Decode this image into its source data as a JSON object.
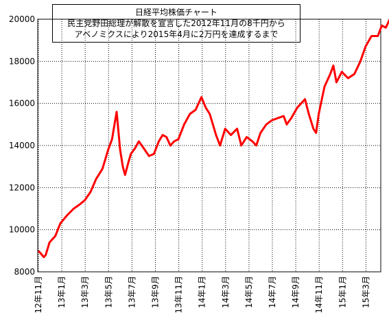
{
  "chart_data": {
    "type": "line",
    "title": [
      "日経平均株価チャート",
      "民主党野田総理が解散を宣言した2012年11月の8千円から",
      "アベノミクスにより2015年4月に2万円を達成するまで"
    ],
    "xlabel": "",
    "ylabel": "",
    "ylim": [
      8000,
      20000
    ],
    "yticks": [
      8000,
      10000,
      12000,
      14000,
      16000,
      18000,
      20000
    ],
    "x_ticks": [
      "12年11月",
      "13年1月",
      "13年3月",
      "13年5月",
      "13年7月",
      "13年9月",
      "13年11月",
      "14年1月",
      "14年3月",
      "14年5月",
      "14年7月",
      "14年9月",
      "14年11月",
      "15年1月",
      "15年3月"
    ],
    "grid": true,
    "legend": "none",
    "line_color": "#ff0000",
    "series": [
      {
        "name": "",
        "x": [
          "2012-11-01",
          "2012-11-15",
          "2012-11-20",
          "2012-11-30",
          "2012-12-15",
          "2012-12-28",
          "2013-01-15",
          "2013-01-31",
          "2013-02-15",
          "2013-02-28",
          "2013-03-15",
          "2013-03-29",
          "2013-04-05",
          "2013-04-15",
          "2013-04-30",
          "2013-05-10",
          "2013-05-22",
          "2013-05-31",
          "2013-06-07",
          "2013-06-13",
          "2013-06-20",
          "2013-06-28",
          "2013-07-10",
          "2013-07-19",
          "2013-07-31",
          "2013-08-15",
          "2013-08-28",
          "2013-09-10",
          "2013-09-20",
          "2013-09-30",
          "2013-10-10",
          "2013-10-20",
          "2013-10-31",
          "2013-11-15",
          "2013-11-30",
          "2013-12-15",
          "2013-12-30",
          "2014-01-10",
          "2014-01-20",
          "2014-02-05",
          "2014-02-15",
          "2014-02-28",
          "2014-03-15",
          "2014-03-31",
          "2014-04-11",
          "2014-04-25",
          "2014-05-10",
          "2014-05-20",
          "2014-05-31",
          "2014-06-15",
          "2014-06-30",
          "2014-07-15",
          "2014-07-31",
          "2014-08-08",
          "2014-08-20",
          "2014-09-05",
          "2014-09-15",
          "2014-09-25",
          "2014-10-05",
          "2014-10-17",
          "2014-10-24",
          "2014-10-31",
          "2014-11-15",
          "2014-11-30",
          "2014-12-08",
          "2014-12-16",
          "2014-12-30",
          "2015-01-15",
          "2015-01-31",
          "2015-02-15",
          "2015-02-28",
          "2015-03-15",
          "2015-03-31",
          "2015-04-10",
          "2015-04-20",
          "2015-04-30"
        ],
        "values": [
          9000,
          8700,
          8800,
          9400,
          9700,
          10300,
          10700,
          11000,
          11200,
          11400,
          11800,
          12400,
          12600,
          12900,
          13800,
          14300,
          15600,
          13800,
          13000,
          12600,
          13100,
          13600,
          13900,
          14200,
          13900,
          13500,
          13600,
          14200,
          14500,
          14400,
          14000,
          14200,
          14300,
          15000,
          15500,
          15700,
          16300,
          15800,
          15500,
          14500,
          14000,
          14800,
          14500,
          14800,
          14000,
          14400,
          14200,
          14000,
          14600,
          15000,
          15200,
          15300,
          15400,
          15000,
          15300,
          15800,
          16000,
          16200,
          15500,
          14800,
          14600,
          15500,
          16800,
          17400,
          17800,
          17000,
          17500,
          17200,
          17400,
          18000,
          18700,
          19200,
          19200,
          19700,
          19600,
          20000
        ]
      }
    ]
  }
}
